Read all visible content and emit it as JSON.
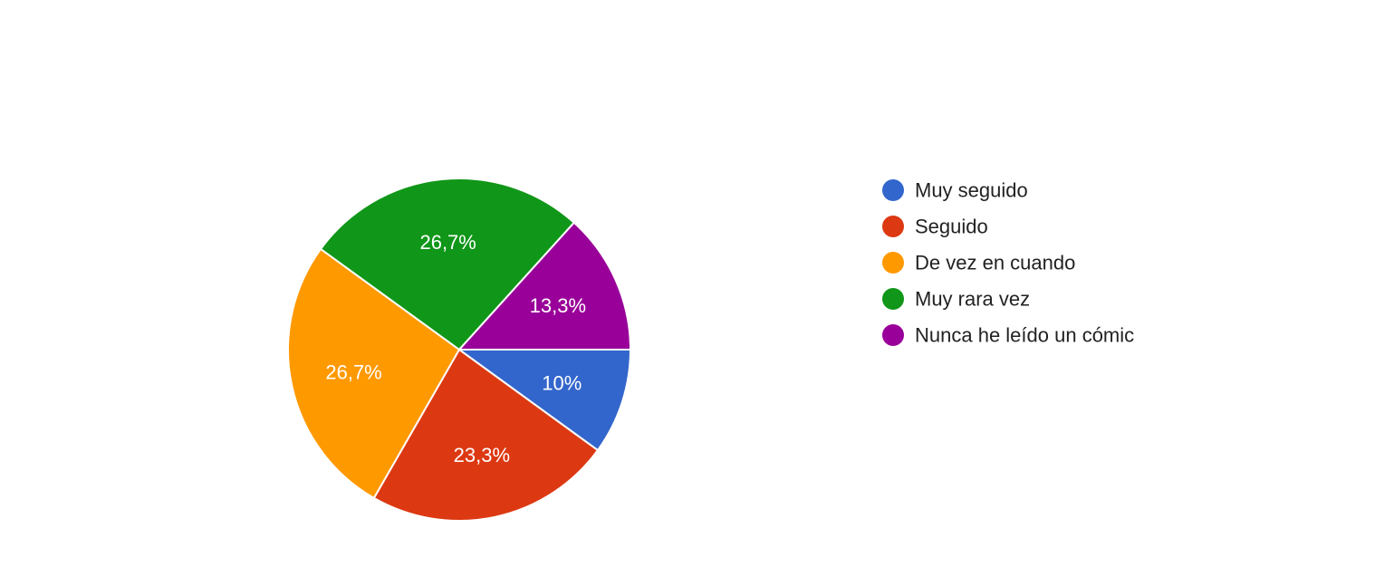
{
  "chart_data": {
    "type": "pie",
    "categories": [
      "Muy seguido",
      "Seguido",
      "De vez en cuando",
      "Muy rara vez",
      "Nunca he leído un cómic"
    ],
    "values": [
      10,
      23.3,
      26.7,
      26.7,
      13.3
    ],
    "value_labels": [
      "10%",
      "23,3%",
      "26,7%",
      "26,7%",
      "13,3%"
    ],
    "colors": [
      "#3366cc",
      "#dc3912",
      "#ff9900",
      "#109618",
      "#990099"
    ],
    "legend_position": "right",
    "start": "3 o'clock",
    "direction": "clockwise"
  }
}
